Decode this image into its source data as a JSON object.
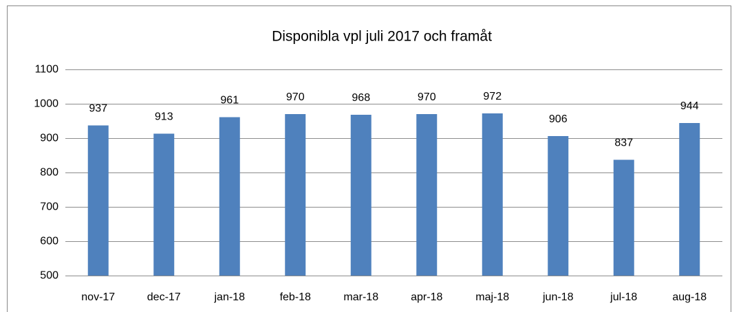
{
  "chart_data": {
    "type": "bar",
    "title": "Disponibla vpl juli 2017 och framåt",
    "categories": [
      "nov-17",
      "dec-17",
      "jan-18",
      "feb-18",
      "mar-18",
      "apr-18",
      "maj-18",
      "jun-18",
      "jul-18",
      "aug-18"
    ],
    "values": [
      937,
      913,
      961,
      970,
      968,
      970,
      972,
      906,
      837,
      944
    ],
    "color": "#4f81bd",
    "ylim": [
      500,
      1100
    ],
    "yticks": [
      500,
      600,
      700,
      800,
      900,
      1000,
      1100
    ],
    "grid": true
  }
}
